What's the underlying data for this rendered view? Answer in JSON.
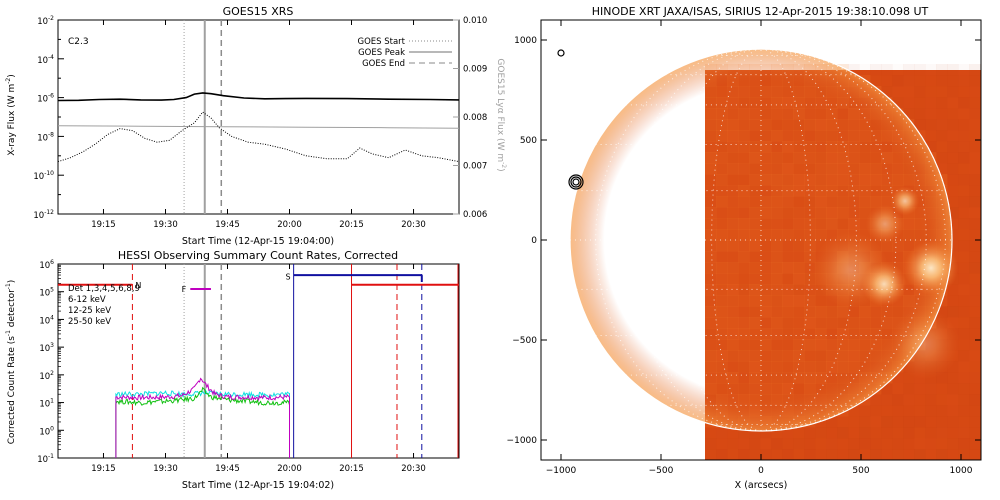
{
  "colors": {
    "black": "#000000",
    "gray": "#a0a0a0",
    "dash_gray": "#8c8c8c",
    "red": "#e01010",
    "magenta": "#c000c0",
    "green": "#10c010",
    "cyan": "#10e0e0",
    "navy": "#1010a0",
    "sun_base": "#d84a14",
    "limb": "#ffffff",
    "grid": "#ffffff"
  },
  "chart_data": [
    {
      "id": "goes",
      "type": "line",
      "title": "GOES15 XRS",
      "class_label": "C2.3",
      "xlabel": "Start Time (12-Apr-15 19:04:00)",
      "ylabel": "X-ray Flux (W m",
      "ylabel_sup": "-2",
      "ylabel_end": ")",
      "y2label": "GOES15 Lyα Flux (W m",
      "y2label_sup": "-2",
      "y2label_end": ")",
      "x_minutes_range": [
        0,
        97
      ],
      "x_ticks": [
        {
          "m": 11,
          "label": "19:15"
        },
        {
          "m": 26,
          "label": "19:30"
        },
        {
          "m": 41,
          "label": "19:45"
        },
        {
          "m": 56,
          "label": "20:00"
        },
        {
          "m": 71,
          "label": "20:15"
        },
        {
          "m": 86,
          "label": "20:30"
        }
      ],
      "y_log_range": [
        -12,
        -2
      ],
      "y_ticks": [
        {
          "e": -2,
          "label": "10",
          "sup": "-2"
        },
        {
          "e": -4,
          "label": "10",
          "sup": "-4"
        },
        {
          "e": -6,
          "label": "10",
          "sup": "-6"
        },
        {
          "e": -8,
          "label": "10",
          "sup": "-8"
        },
        {
          "e": -10,
          "label": "10",
          "sup": "-10"
        },
        {
          "e": -12,
          "label": "10",
          "sup": "-12"
        }
      ],
      "y2_range": [
        0.006,
        0.01
      ],
      "y2_ticks": [
        "0.010",
        "0.009",
        "0.008",
        "0.007",
        "0.006"
      ],
      "legend": [
        {
          "label": "GOES Start",
          "style": "dotted"
        },
        {
          "label": "GOES Peak",
          "style": "solid"
        },
        {
          "label": "GOES End",
          "style": "dashed"
        }
      ],
      "markers": {
        "start_m": 30.5,
        "peak_m": 35.5,
        "end_m": 39.5
      },
      "series": [
        {
          "name": "long",
          "unit": "log10",
          "x": [
            0,
            5,
            10,
            15,
            20,
            25,
            28,
            31,
            33,
            35,
            37,
            40,
            45,
            50,
            55,
            60,
            70,
            80,
            90,
            97
          ],
          "y": [
            -6.15,
            -6.14,
            -6.1,
            -6.08,
            -6.12,
            -6.13,
            -6.1,
            -6.0,
            -5.82,
            -5.76,
            -5.8,
            -5.9,
            -6.02,
            -6.06,
            -6.05,
            -6.04,
            -6.05,
            -6.08,
            -6.1,
            -6.12
          ]
        },
        {
          "name": "short",
          "unit": "log10",
          "x": [
            0,
            3,
            6,
            9,
            12,
            15,
            18,
            21,
            24,
            27,
            30,
            33,
            35,
            37,
            39,
            42,
            46,
            50,
            55,
            60,
            65,
            70,
            73,
            76,
            80,
            84,
            88,
            92,
            97
          ],
          "y": [
            -9.3,
            -9.1,
            -8.8,
            -8.4,
            -7.9,
            -7.6,
            -7.7,
            -8.1,
            -8.3,
            -8.2,
            -7.7,
            -7.3,
            -6.75,
            -7.05,
            -7.55,
            -8.0,
            -8.3,
            -8.4,
            -8.65,
            -9.0,
            -9.15,
            -9.15,
            -8.6,
            -8.9,
            -9.1,
            -8.7,
            -9.0,
            -9.1,
            -9.3
          ]
        },
        {
          "name": "lya",
          "unit": "W m-2",
          "x": [
            0,
            20,
            40,
            60,
            80,
            97
          ],
          "y": [
            0.00782,
            0.00781,
            0.0078,
            0.00779,
            0.00778,
            0.00777
          ]
        }
      ]
    },
    {
      "id": "hessi",
      "type": "line",
      "title": "HESSI Observing Summary Count Rates, Corrected",
      "xlabel": "Start Time (12-Apr-15 19:04:02)",
      "ylabel": "Corrected Count Rate (s",
      "ylabel_sup": "-1",
      "ylabel_end": " detector",
      "ylabel_sup2": "-1",
      "ylabel_end2": ")",
      "x_minutes_range": [
        0,
        97
      ],
      "x_ticks": [
        {
          "m": 11,
          "label": "19:15"
        },
        {
          "m": 26,
          "label": "19:30"
        },
        {
          "m": 41,
          "label": "19:45"
        },
        {
          "m": 56,
          "label": "20:00"
        },
        {
          "m": 71,
          "label": "20:15"
        },
        {
          "m": 86,
          "label": "20:30"
        }
      ],
      "y_log_range": [
        -1,
        6
      ],
      "y_ticks": [
        {
          "e": 6,
          "label": "10",
          "sup": "6"
        },
        {
          "e": 5,
          "label": "10",
          "sup": "5"
        },
        {
          "e": 4,
          "label": "10",
          "sup": "4"
        },
        {
          "e": 3,
          "label": "10",
          "sup": "3"
        },
        {
          "e": 2,
          "label": "10",
          "sup": "2"
        },
        {
          "e": 1,
          "label": "10",
          "sup": "1"
        },
        {
          "e": 0,
          "label": "10",
          "sup": "0"
        },
        {
          "e": -1,
          "label": "10",
          "sup": "-1"
        }
      ],
      "legend": [
        {
          "label": "Det 1,3,4,5,6,8,9",
          "color": "black"
        },
        {
          "label": "6-12 keV",
          "color": "magenta"
        },
        {
          "label": "12-25 keV",
          "color": "green"
        },
        {
          "label": "25-50 keV",
          "color": "cyan"
        }
      ],
      "flag_N": "N",
      "flag_F": "F",
      "flag_S": "S",
      "markers": {
        "start_m": 30.5,
        "peak_m": 35.5,
        "end_m": 39.5,
        "red_dashed_m": [
          18,
          82
        ],
        "red_solid_m": [
          71
        ],
        "navy_solid_m": [
          57
        ],
        "navy_dashed_m": [
          88
        ]
      },
      "attenuator": [
        {
          "color": "red",
          "x0": 0,
          "x1": 18,
          "logy": 5.25
        },
        {
          "color": "navy",
          "x0": 57,
          "x1": 88,
          "logy": 5.6
        },
        {
          "color": "red",
          "x0": 71,
          "x1": 97,
          "logy": 5.25
        }
      ],
      "flare_flag": {
        "x0": 32,
        "x1": 37,
        "logy": 5.1
      },
      "series": [
        {
          "name": "6-12 keV",
          "x": [
            14,
            20,
            26,
            30,
            33,
            34.5,
            36,
            38,
            41,
            45,
            50,
            56
          ],
          "y": [
            1.2,
            1.18,
            1.2,
            1.25,
            1.5,
            1.9,
            1.6,
            1.3,
            1.2,
            1.2,
            1.18,
            1.2
          ]
        },
        {
          "name": "12-25 keV",
          "x": [
            14,
            20,
            26,
            30,
            33,
            35,
            37,
            41,
            45,
            50,
            56
          ],
          "y": [
            1.05,
            1.0,
            1.05,
            1.1,
            1.15,
            1.45,
            1.2,
            1.1,
            1.05,
            1.0,
            1.0
          ]
        },
        {
          "name": "25-50 keV",
          "x": [
            14,
            20,
            26,
            30,
            33,
            35,
            37,
            41,
            45,
            50,
            56
          ],
          "y": [
            1.3,
            1.3,
            1.35,
            1.3,
            1.32,
            1.35,
            1.32,
            1.3,
            1.3,
            1.28,
            1.3
          ]
        }
      ],
      "gaps": {
        "data_start_m": 14,
        "data_end_m": 56
      }
    },
    {
      "id": "xrt",
      "type": "heatmap",
      "title": "HINODE XRT JAXA/ISAS, SIRIUS 12-Apr-2015 19:38:10.098 UT",
      "xlabel": "X (arcsecs)",
      "x_range": [
        -1100,
        1100
      ],
      "y_range": [
        -1100,
        1100
      ],
      "x_ticks": [
        -1000,
        -500,
        0,
        500,
        1000
      ],
      "x_tick_labels": [
        "−1000",
        "−500",
        "0",
        "500",
        "1000"
      ],
      "y_ticks": [
        1000,
        500,
        0,
        -500,
        -1000
      ],
      "y_tick_labels": [
        "1000",
        "500",
        "0",
        "−500",
        "−1000"
      ],
      "image_extent": {
        "x0": -280,
        "x1": 1100,
        "y0": -1100,
        "y1": 850
      },
      "solar_radius": 955,
      "brightenings": [
        {
          "x": 850,
          "y": -140,
          "r": 85,
          "i": 0.9
        },
        {
          "x": 615,
          "y": -220,
          "r": 70,
          "i": 0.85
        },
        {
          "x": 720,
          "y": 195,
          "r": 45,
          "i": 0.7
        },
        {
          "x": 620,
          "y": 80,
          "r": 60,
          "i": 0.45
        },
        {
          "x": 450,
          "y": -150,
          "r": 120,
          "i": 0.35
        },
        {
          "x": 820,
          "y": -520,
          "r": 110,
          "i": 0.3
        }
      ],
      "contours": [
        {
          "x": -925,
          "y": 290
        },
        {
          "x": -1000,
          "y": 935
        }
      ]
    }
  ]
}
